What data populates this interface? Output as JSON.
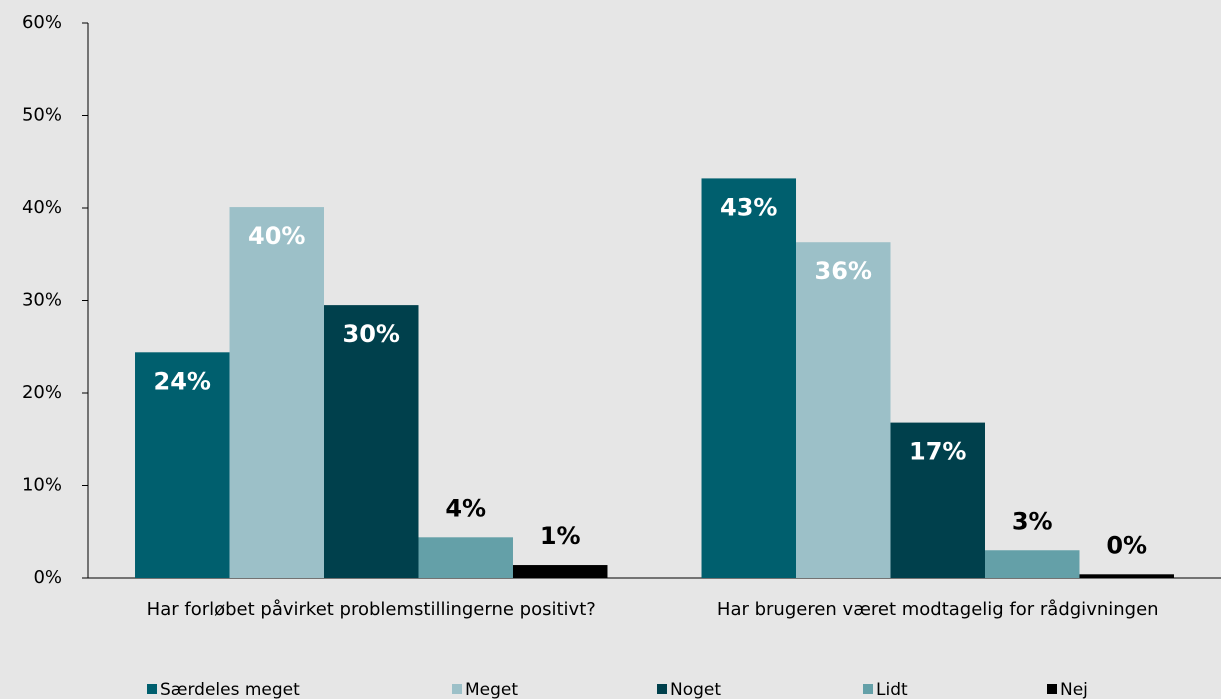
{
  "chart_data": {
    "type": "bar",
    "categories": [
      "Har forløbet påvirket problemstillingerne positivt?",
      "Har brugeren været modtagelig for rådgivningen"
    ],
    "series": [
      {
        "name": "Særdeles meget",
        "color": "#005f6e",
        "values": [
          24.4,
          43.2
        ],
        "value_labels": [
          "24%",
          "43%"
        ]
      },
      {
        "name": "Meget",
        "color": "#9cc0c8",
        "values": [
          40.1,
          36.3
        ],
        "value_labels": [
          "40%",
          "36%"
        ]
      },
      {
        "name": "Noget",
        "color": "#00404c",
        "values": [
          29.5,
          16.8
        ],
        "value_labels": [
          "30%",
          "17%"
        ]
      },
      {
        "name": "Lidt",
        "color": "#64a0a8",
        "values": [
          4.4,
          3.0
        ],
        "value_labels": [
          "4%",
          "3%"
        ]
      },
      {
        "name": "Nej",
        "color": "#000000",
        "values": [
          1.4,
          0.4
        ],
        "value_labels": [
          "1%",
          "0%"
        ]
      }
    ],
    "ylim": [
      0,
      60
    ],
    "yticks": [
      {
        "value": 0,
        "label": "0%"
      },
      {
        "value": 10,
        "label": "10%"
      },
      {
        "value": 20,
        "label": "20%"
      },
      {
        "value": 30,
        "label": "30%"
      },
      {
        "value": 40,
        "label": "40%"
      },
      {
        "value": 50,
        "label": "50%"
      },
      {
        "value": 60,
        "label": "60%"
      }
    ],
    "grid": false,
    "legend": "bottom"
  }
}
